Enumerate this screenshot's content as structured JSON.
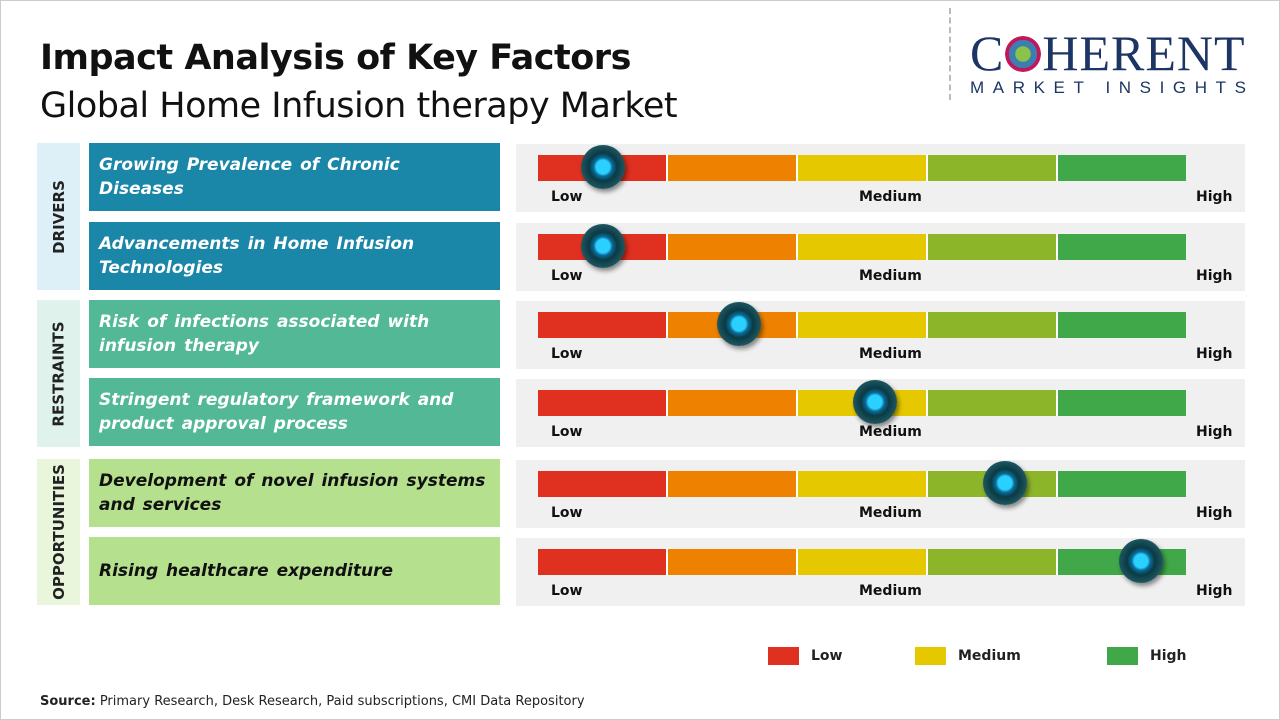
{
  "title": "Impact Analysis of Key Factors",
  "subtitle": "Global Home Infusion therapy Market",
  "logo": {
    "top": "COHERENT",
    "bottom": "MARKET INSIGHTS"
  },
  "scale_labels": {
    "low": "Low",
    "medium": "Medium",
    "high": "High"
  },
  "scale_colors": [
    "#e03020",
    "#ee8200",
    "#e6c800",
    "#8db52a",
    "#40a848"
  ],
  "categories": [
    {
      "label": "DRIVERS",
      "color": "#1a86a8",
      "bg": "#ddf0f8",
      "text_color": "#ffffff"
    },
    {
      "label": "RESTRAINTS",
      "color": "#52b896",
      "bg": "#dff3ec",
      "text_color": "#ffffff"
    },
    {
      "label": "OPPORTUNITIES",
      "color": "#b5e08e",
      "bg": "#e9f6dc",
      "text_color": "#111111"
    }
  ],
  "chart_data": {
    "type": "gauge",
    "scale": [
      "Low",
      "Medium",
      "High"
    ],
    "range": [
      0,
      1
    ],
    "factors": [
      {
        "category": "DRIVERS",
        "label": "Growing Prevalence of Chronic Diseases",
        "impact": 0.1
      },
      {
        "category": "DRIVERS",
        "label": "Advancements in Home Infusion Technologies",
        "impact": 0.1
      },
      {
        "category": "RESTRAINTS",
        "label": "Risk of infections associated with infusion therapy",
        "impact": 0.31
      },
      {
        "category": "RESTRAINTS",
        "label": "Stringent regulatory framework and product approval process",
        "impact": 0.52
      },
      {
        "category": "OPPORTUNITIES",
        "label": "Development of novel infusion systems and services",
        "impact": 0.72
      },
      {
        "category": "OPPORTUNITIES",
        "label": "Rising healthcare expenditure",
        "impact": 0.93
      }
    ]
  },
  "legend": [
    {
      "label": "Low",
      "color": "#e03020"
    },
    {
      "label": "Medium",
      "color": "#e6c800"
    },
    {
      "label": "High",
      "color": "#40a848"
    }
  ],
  "source": {
    "prefix": "Source:",
    "text": " Primary Research, Desk Research, Paid subscriptions, CMI Data Repository"
  }
}
